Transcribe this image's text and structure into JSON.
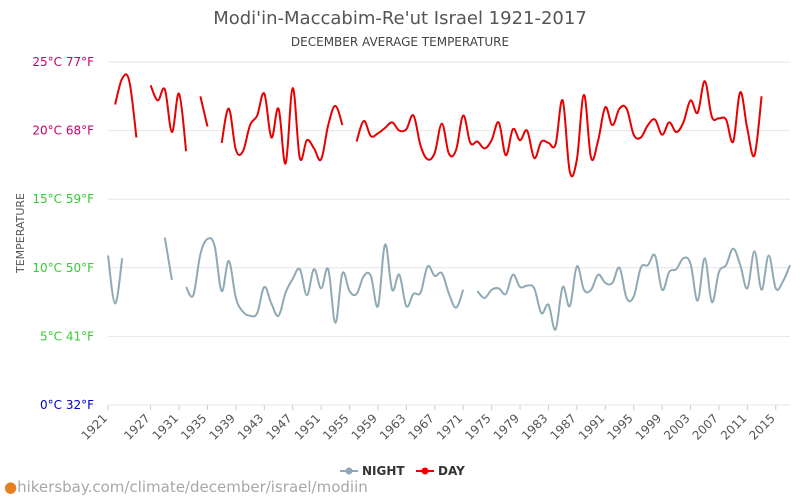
{
  "chart_data": {
    "type": "line",
    "title": "Modi'in-Maccabim-Re'ut Israel 1921-2017",
    "subtitle": "DECEMBER AVERAGE TEMPERATURE",
    "ylabel": "TEMPERATURE",
    "xlabel": "",
    "ylim": [
      0,
      25
    ],
    "y_ticks": [
      {
        "value": 0,
        "label": "0°C 32°F",
        "color": "#0000cc"
      },
      {
        "value": 5,
        "label": "5°C 41°F",
        "color": "#33cc33"
      },
      {
        "value": 10,
        "label": "10°C 50°F",
        "color": "#33cc33"
      },
      {
        "value": 15,
        "label": "15°C 59°F",
        "color": "#33cc33"
      },
      {
        "value": 20,
        "label": "20°C 68°F",
        "color": "#cc0066"
      },
      {
        "value": 25,
        "label": "25°C 77°F",
        "color": "#cc0066"
      }
    ],
    "x_ticks": [
      1921,
      1927,
      1931,
      1935,
      1939,
      1943,
      1947,
      1951,
      1955,
      1959,
      1963,
      1967,
      1971,
      1975,
      1979,
      1983,
      1987,
      1991,
      1995,
      1999,
      2003,
      2007,
      2011,
      2015
    ],
    "x_range": [
      1921,
      2017
    ],
    "legend_position": "bottom",
    "series": [
      {
        "name": "NIGHT",
        "color": "#90aab5",
        "values": [
          [
            1921,
            10.9
          ],
          [
            1922,
            7.4
          ],
          [
            1923,
            10.7
          ],
          [
            1924,
            null
          ],
          [
            1929,
            12.2
          ],
          [
            1930,
            9.1
          ],
          [
            1931,
            null
          ],
          [
            1932,
            8.6
          ],
          [
            1933,
            8.0
          ],
          [
            1934,
            11.0
          ],
          [
            1935,
            12.1
          ],
          [
            1936,
            11.6
          ],
          [
            1937,
            8.3
          ],
          [
            1938,
            10.5
          ],
          [
            1939,
            7.8
          ],
          [
            1940,
            6.8
          ],
          [
            1941,
            6.5
          ],
          [
            1942,
            6.7
          ],
          [
            1943,
            8.6
          ],
          [
            1944,
            7.4
          ],
          [
            1945,
            6.5
          ],
          [
            1946,
            8.2
          ],
          [
            1947,
            9.2
          ],
          [
            1948,
            9.9
          ],
          [
            1949,
            8.0
          ],
          [
            1950,
            9.9
          ],
          [
            1951,
            8.5
          ],
          [
            1952,
            9.9
          ],
          [
            1953,
            6.0
          ],
          [
            1954,
            9.6
          ],
          [
            1955,
            8.3
          ],
          [
            1956,
            8.1
          ],
          [
            1957,
            9.4
          ],
          [
            1958,
            9.4
          ],
          [
            1959,
            7.2
          ],
          [
            1960,
            11.7
          ],
          [
            1961,
            8.4
          ],
          [
            1962,
            9.5
          ],
          [
            1963,
            7.2
          ],
          [
            1964,
            8.1
          ],
          [
            1965,
            8.2
          ],
          [
            1966,
            10.1
          ],
          [
            1967,
            9.4
          ],
          [
            1968,
            9.6
          ],
          [
            1969,
            8.1
          ],
          [
            1970,
            7.1
          ],
          [
            1971,
            8.4
          ],
          [
            1972,
            null
          ],
          [
            1973,
            8.3
          ],
          [
            1974,
            7.8
          ],
          [
            1975,
            8.4
          ],
          [
            1976,
            8.5
          ],
          [
            1977,
            8.1
          ],
          [
            1978,
            9.5
          ],
          [
            1979,
            8.6
          ],
          [
            1980,
            8.7
          ],
          [
            1981,
            8.5
          ],
          [
            1982,
            6.7
          ],
          [
            1983,
            7.3
          ],
          [
            1984,
            5.5
          ],
          [
            1985,
            8.6
          ],
          [
            1986,
            7.2
          ],
          [
            1987,
            10.1
          ],
          [
            1988,
            8.4
          ],
          [
            1989,
            8.4
          ],
          [
            1990,
            9.5
          ],
          [
            1991,
            8.9
          ],
          [
            1992,
            8.9
          ],
          [
            1993,
            10.0
          ],
          [
            1994,
            7.8
          ],
          [
            1995,
            7.9
          ],
          [
            1996,
            10.0
          ],
          [
            1997,
            10.2
          ],
          [
            1998,
            10.9
          ],
          [
            1999,
            8.4
          ],
          [
            2000,
            9.7
          ],
          [
            2001,
            9.9
          ],
          [
            2002,
            10.7
          ],
          [
            2003,
            10.3
          ],
          [
            2004,
            7.6
          ],
          [
            2005,
            10.7
          ],
          [
            2006,
            7.5
          ],
          [
            2007,
            9.7
          ],
          [
            2008,
            10.2
          ],
          [
            2009,
            11.4
          ],
          [
            2010,
            10.2
          ],
          [
            2011,
            8.5
          ],
          [
            2012,
            11.2
          ],
          [
            2013,
            8.4
          ],
          [
            2014,
            10.9
          ],
          [
            2015,
            8.5
          ],
          [
            2016,
            9.0
          ],
          [
            2017,
            10.2
          ]
        ]
      },
      {
        "name": "DAY",
        "color": "#e80000",
        "values": [
          [
            1922,
            21.9
          ],
          [
            1923,
            23.8
          ],
          [
            1924,
            23.6
          ],
          [
            1925,
            19.5
          ],
          [
            1926,
            null
          ],
          [
            1927,
            23.3
          ],
          [
            1928,
            22.2
          ],
          [
            1929,
            23.0
          ],
          [
            1930,
            19.9
          ],
          [
            1931,
            22.7
          ],
          [
            1932,
            18.5
          ],
          [
            1933,
            null
          ],
          [
            1934,
            22.5
          ],
          [
            1935,
            20.3
          ],
          [
            1936,
            null
          ],
          [
            1937,
            19.1
          ],
          [
            1938,
            21.6
          ],
          [
            1939,
            18.6
          ],
          [
            1940,
            18.5
          ],
          [
            1941,
            20.4
          ],
          [
            1942,
            21.1
          ],
          [
            1943,
            22.7
          ],
          [
            1944,
            19.5
          ],
          [
            1945,
            21.6
          ],
          [
            1946,
            17.6
          ],
          [
            1947,
            23.1
          ],
          [
            1948,
            18.0
          ],
          [
            1949,
            19.3
          ],
          [
            1950,
            18.7
          ],
          [
            1951,
            17.9
          ],
          [
            1952,
            20.4
          ],
          [
            1953,
            21.8
          ],
          [
            1954,
            20.4
          ],
          [
            1955,
            null
          ],
          [
            1956,
            19.2
          ],
          [
            1957,
            20.7
          ],
          [
            1958,
            19.6
          ],
          [
            1959,
            19.8
          ],
          [
            1960,
            20.2
          ],
          [
            1961,
            20.6
          ],
          [
            1962,
            20.0
          ],
          [
            1963,
            20.1
          ],
          [
            1964,
            21.1
          ],
          [
            1965,
            18.9
          ],
          [
            1966,
            17.9
          ],
          [
            1967,
            18.4
          ],
          [
            1968,
            20.5
          ],
          [
            1969,
            18.3
          ],
          [
            1970,
            18.6
          ],
          [
            1971,
            21.1
          ],
          [
            1972,
            19.1
          ],
          [
            1973,
            19.2
          ],
          [
            1974,
            18.7
          ],
          [
            1975,
            19.3
          ],
          [
            1976,
            20.6
          ],
          [
            1977,
            18.2
          ],
          [
            1978,
            20.1
          ],
          [
            1979,
            19.3
          ],
          [
            1980,
            20.0
          ],
          [
            1981,
            18.0
          ],
          [
            1982,
            19.2
          ],
          [
            1983,
            19.1
          ],
          [
            1984,
            19.0
          ],
          [
            1985,
            22.2
          ],
          [
            1986,
            17.0
          ],
          [
            1987,
            17.9
          ],
          [
            1988,
            22.6
          ],
          [
            1989,
            18.0
          ],
          [
            1990,
            19.3
          ],
          [
            1991,
            21.7
          ],
          [
            1992,
            20.4
          ],
          [
            1993,
            21.6
          ],
          [
            1994,
            21.6
          ],
          [
            1995,
            19.7
          ],
          [
            1996,
            19.5
          ],
          [
            1997,
            20.4
          ],
          [
            1998,
            20.8
          ],
          [
            1999,
            19.7
          ],
          [
            2000,
            20.6
          ],
          [
            2001,
            19.9
          ],
          [
            2002,
            20.6
          ],
          [
            2003,
            22.2
          ],
          [
            2004,
            21.3
          ],
          [
            2005,
            23.6
          ],
          [
            2006,
            21.0
          ],
          [
            2007,
            20.9
          ],
          [
            2008,
            20.8
          ],
          [
            2009,
            19.2
          ],
          [
            2010,
            22.8
          ],
          [
            2011,
            20.1
          ],
          [
            2012,
            18.2
          ],
          [
            2013,
            22.5
          ]
        ]
      }
    ]
  },
  "footer": {
    "watermark": "hikersbay.com/climate/december/israel/modiin"
  }
}
